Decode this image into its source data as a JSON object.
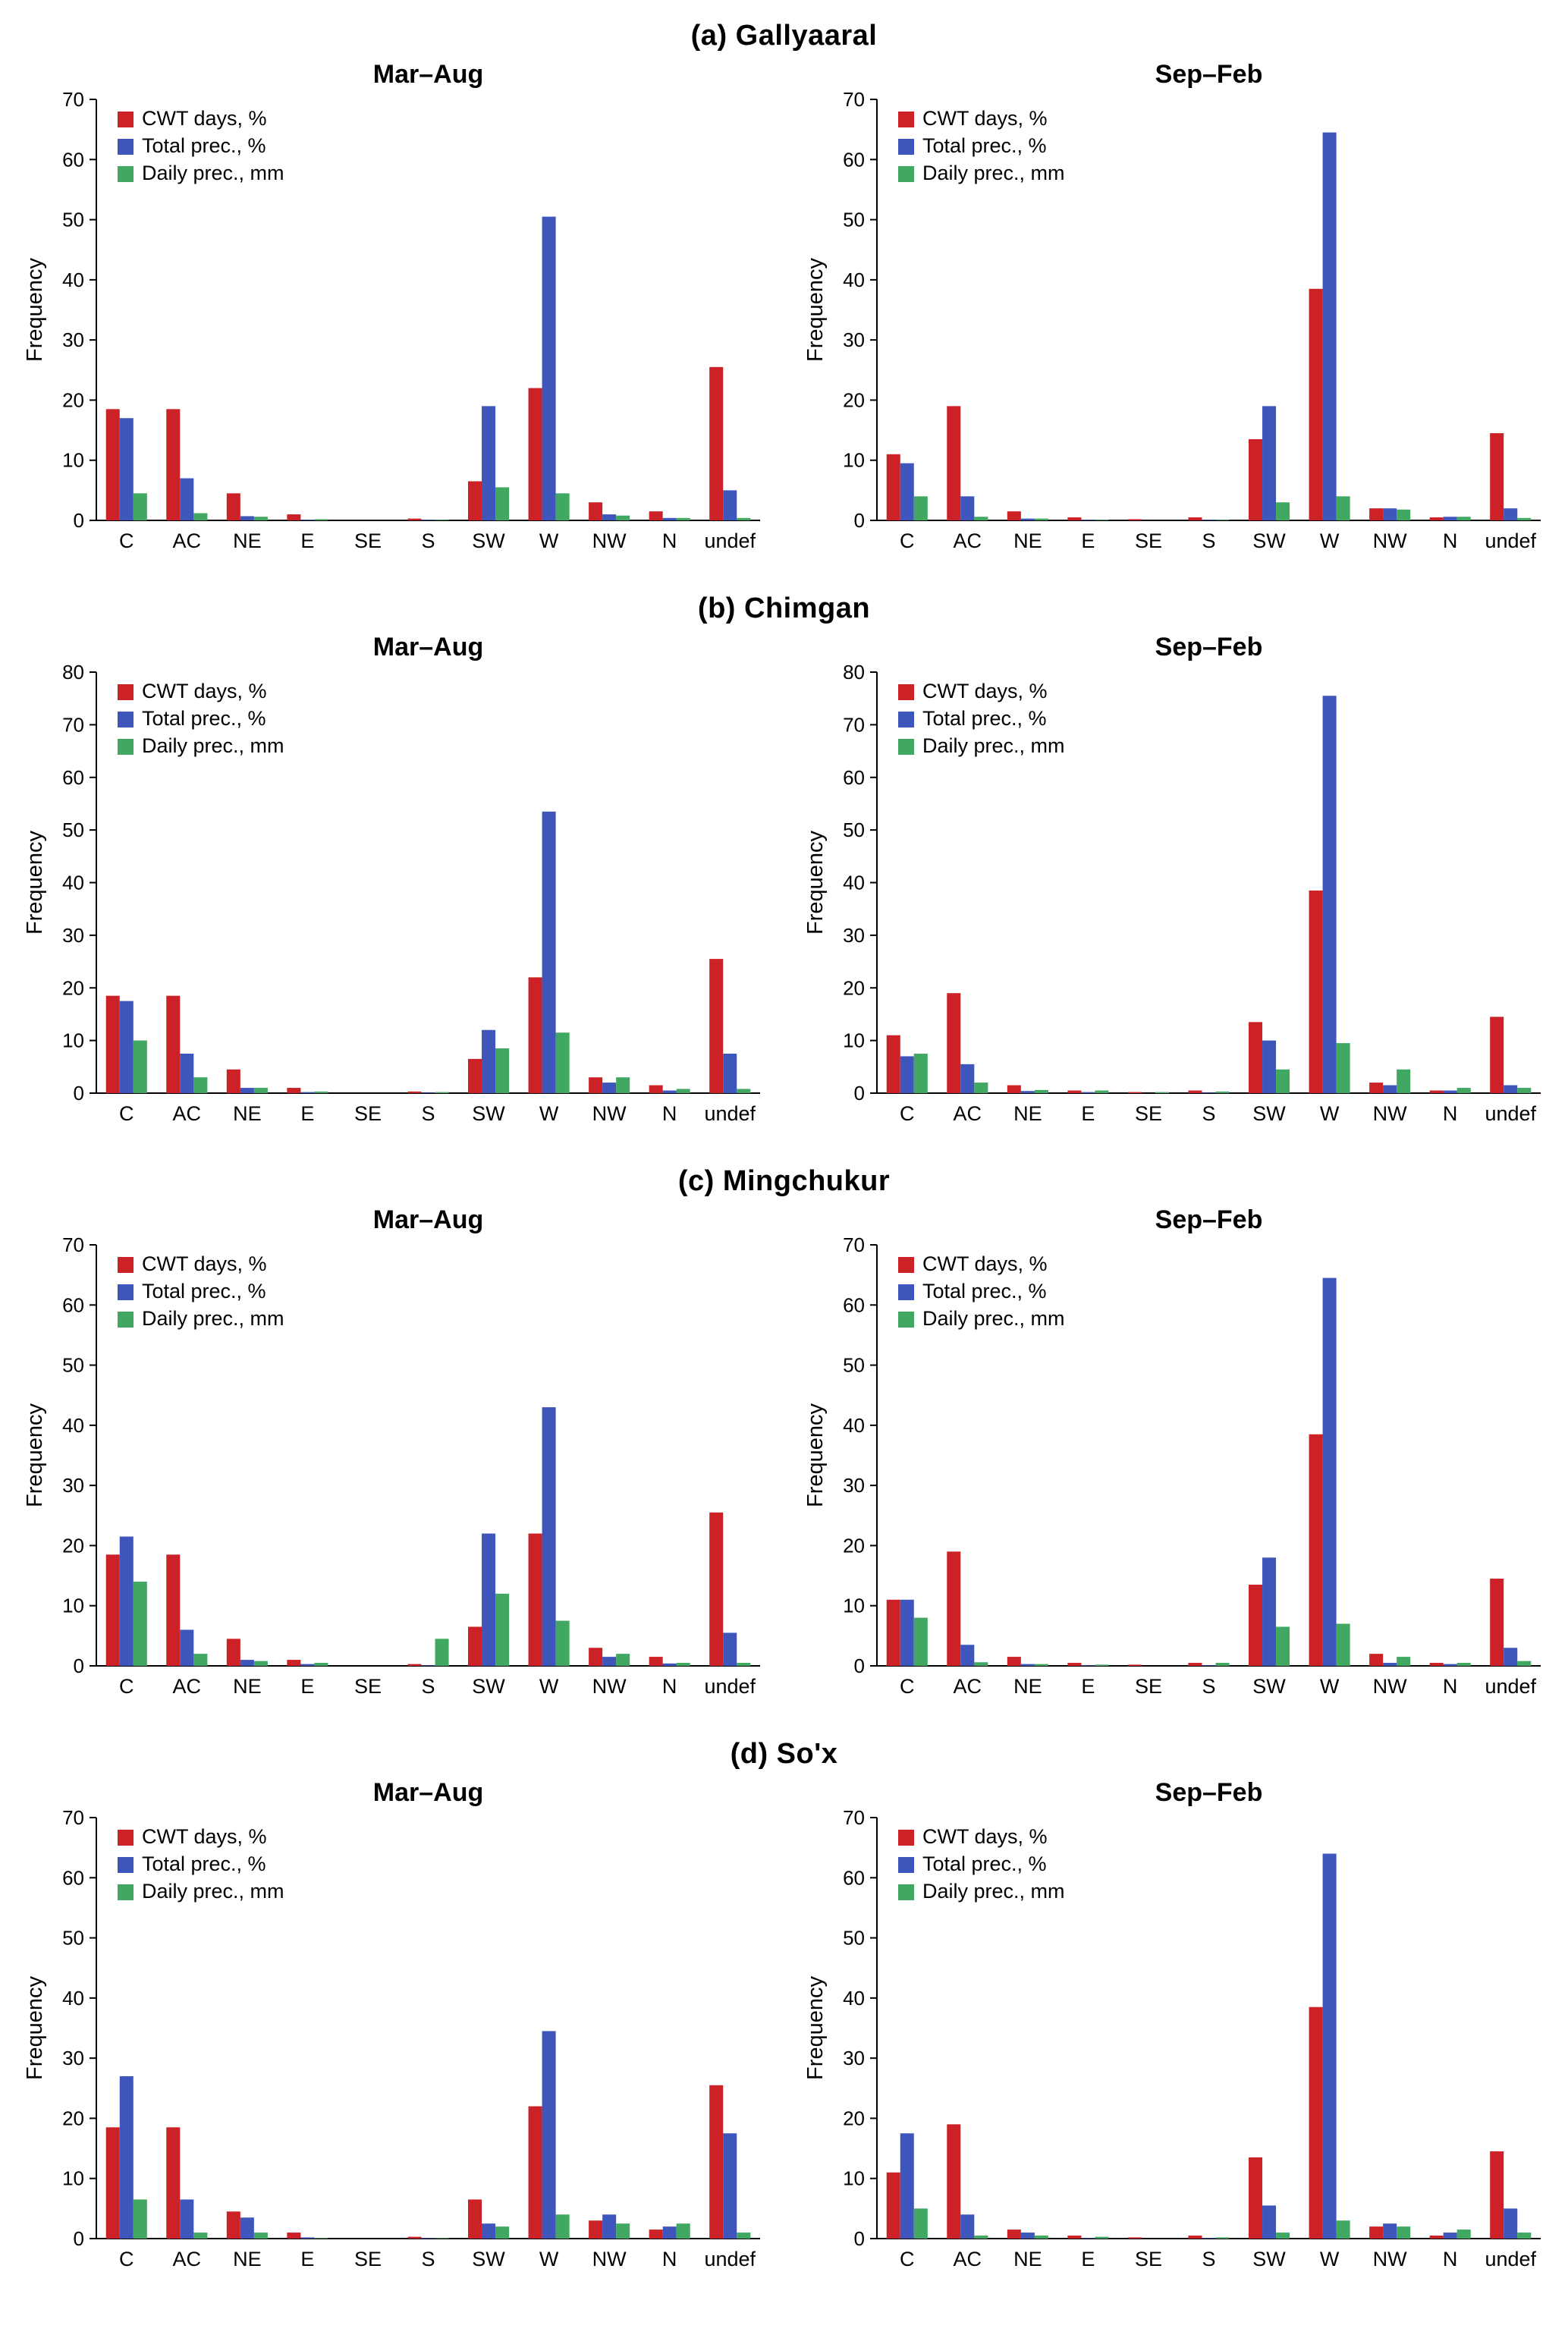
{
  "page": {
    "sections": [
      {
        "heading": "(a)  Gallyaaral"
      },
      {
        "heading": "(b)  Chimgan"
      },
      {
        "heading": "(c)  Mingchukur"
      },
      {
        "heading": "(d)  So'x"
      }
    ]
  },
  "legend": [
    "CWT days, %",
    "Total prec., %",
    "Daily prec., mm"
  ],
  "colors": {
    "cwt_days": "#cc2126",
    "total_prec": "#3e56bb",
    "daily_prec": "#40a860"
  },
  "chart_data": [
    {
      "id": "a-mar-aug",
      "section": "(a)  Gallyaaral",
      "title": "Mar–Aug",
      "type": "bar",
      "categories": [
        "C",
        "AC",
        "NE",
        "E",
        "SE",
        "S",
        "SW",
        "W",
        "NW",
        "N",
        "undef"
      ],
      "ylabel": "Frequency",
      "ylim": [
        0,
        70
      ],
      "ytick": 10,
      "legend_position": "top-left",
      "series": [
        {
          "name": "CWT days, %",
          "color": "#cc2126",
          "values": [
            18.5,
            18.5,
            4.5,
            1.0,
            0,
            0.3,
            6.5,
            22.0,
            3.0,
            1.5,
            25.5
          ]
        },
        {
          "name": "Total prec., %",
          "color": "#3e56bb",
          "values": [
            17.0,
            7.0,
            0.7,
            0.1,
            0,
            0.1,
            19.0,
            50.5,
            1.0,
            0.4,
            5.0
          ]
        },
        {
          "name": "Daily prec., mm",
          "color": "#40a860",
          "values": [
            4.5,
            1.2,
            0.6,
            0.2,
            0,
            0.1,
            5.5,
            4.5,
            0.8,
            0.4,
            0.4
          ]
        }
      ]
    },
    {
      "id": "a-sep-feb",
      "section": "(a)  Gallyaaral",
      "title": "Sep–Feb",
      "type": "bar",
      "categories": [
        "C",
        "AC",
        "NE",
        "E",
        "SE",
        "S",
        "SW",
        "W",
        "NW",
        "N",
        "undef"
      ],
      "ylabel": "Frequency",
      "ylim": [
        0,
        70
      ],
      "ytick": 10,
      "legend_position": "top-left",
      "series": [
        {
          "name": "CWT days, %",
          "color": "#cc2126",
          "values": [
            11.0,
            19.0,
            1.5,
            0.5,
            0.2,
            0.5,
            13.5,
            38.5,
            2.0,
            0.5,
            14.5
          ]
        },
        {
          "name": "Total prec., %",
          "color": "#3e56bb",
          "values": [
            9.5,
            4.0,
            0.3,
            0.1,
            0,
            0.1,
            19.0,
            64.5,
            2.0,
            0.6,
            2.0
          ]
        },
        {
          "name": "Daily prec., mm",
          "color": "#40a860",
          "values": [
            4.0,
            0.6,
            0.3,
            0.1,
            0,
            0.1,
            3.0,
            4.0,
            1.8,
            0.6,
            0.4
          ]
        }
      ]
    },
    {
      "id": "b-mar-aug",
      "section": "(b)  Chimgan",
      "title": "Mar–Aug",
      "type": "bar",
      "categories": [
        "C",
        "AC",
        "NE",
        "E",
        "SE",
        "S",
        "SW",
        "W",
        "NW",
        "N",
        "undef"
      ],
      "ylabel": "Frequency",
      "ylim": [
        0,
        80
      ],
      "ytick": 10,
      "legend_position": "top-left",
      "series": [
        {
          "name": "CWT days, %",
          "color": "#cc2126",
          "values": [
            18.5,
            18.5,
            4.5,
            1.0,
            0,
            0.3,
            6.5,
            22.0,
            3.0,
            1.5,
            25.5
          ]
        },
        {
          "name": "Total prec., %",
          "color": "#3e56bb",
          "values": [
            17.5,
            7.5,
            1.0,
            0.2,
            0,
            0.1,
            12.0,
            53.5,
            2.0,
            0.5,
            7.5
          ]
        },
        {
          "name": "Daily prec., mm",
          "color": "#40a860",
          "values": [
            10.0,
            3.0,
            1.0,
            0.3,
            0,
            0.2,
            8.5,
            11.5,
            3.0,
            0.8,
            0.8
          ]
        }
      ]
    },
    {
      "id": "b-sep-feb",
      "section": "(b)  Chimgan",
      "title": "Sep–Feb",
      "type": "bar",
      "categories": [
        "C",
        "AC",
        "NE",
        "E",
        "SE",
        "S",
        "SW",
        "W",
        "NW",
        "N",
        "undef"
      ],
      "ylabel": "Frequency",
      "ylim": [
        0,
        80
      ],
      "ytick": 10,
      "legend_position": "top-left",
      "series": [
        {
          "name": "CWT days, %",
          "color": "#cc2126",
          "values": [
            11.0,
            19.0,
            1.5,
            0.5,
            0.2,
            0.5,
            13.5,
            38.5,
            2.0,
            0.5,
            14.5
          ]
        },
        {
          "name": "Total prec., %",
          "color": "#3e56bb",
          "values": [
            7.0,
            5.5,
            0.4,
            0.2,
            0,
            0.1,
            10.0,
            75.5,
            1.5,
            0.5,
            1.5
          ]
        },
        {
          "name": "Daily prec., mm",
          "color": "#40a860",
          "values": [
            7.5,
            2.0,
            0.6,
            0.5,
            0.2,
            0.3,
            4.5,
            9.5,
            4.5,
            1.0,
            1.0
          ]
        }
      ]
    },
    {
      "id": "c-mar-aug",
      "section": "(c)  Mingchukur",
      "title": "Mar–Aug",
      "type": "bar",
      "categories": [
        "C",
        "AC",
        "NE",
        "E",
        "SE",
        "S",
        "SW",
        "W",
        "NW",
        "N",
        "undef"
      ],
      "ylabel": "Frequency",
      "ylim": [
        0,
        70
      ],
      "ytick": 10,
      "legend_position": "top-left",
      "series": [
        {
          "name": "CWT days, %",
          "color": "#cc2126",
          "values": [
            18.5,
            18.5,
            4.5,
            1.0,
            0,
            0.3,
            6.5,
            22.0,
            3.0,
            1.5,
            25.5
          ]
        },
        {
          "name": "Total prec., %",
          "color": "#3e56bb",
          "values": [
            21.5,
            6.0,
            1.0,
            0.3,
            0,
            0.1,
            22.0,
            43.0,
            1.5,
            0.4,
            5.5
          ]
        },
        {
          "name": "Daily prec., mm",
          "color": "#40a860",
          "values": [
            14.0,
            2.0,
            0.8,
            0.5,
            0,
            4.5,
            12.0,
            7.5,
            2.0,
            0.5,
            0.5
          ]
        }
      ]
    },
    {
      "id": "c-sep-feb",
      "section": "(c)  Mingchukur",
      "title": "Sep–Feb",
      "type": "bar",
      "categories": [
        "C",
        "AC",
        "NE",
        "E",
        "SE",
        "S",
        "SW",
        "W",
        "NW",
        "N",
        "undef"
      ],
      "ylabel": "Frequency",
      "ylim": [
        0,
        70
      ],
      "ytick": 10,
      "legend_position": "top-left",
      "series": [
        {
          "name": "CWT days, %",
          "color": "#cc2126",
          "values": [
            11.0,
            19.0,
            1.5,
            0.5,
            0.2,
            0.5,
            13.5,
            38.5,
            2.0,
            0.5,
            14.5
          ]
        },
        {
          "name": "Total prec., %",
          "color": "#3e56bb",
          "values": [
            11.0,
            3.5,
            0.3,
            0.1,
            0,
            0.1,
            18.0,
            64.5,
            0.5,
            0.3,
            3.0
          ]
        },
        {
          "name": "Daily prec., mm",
          "color": "#40a860",
          "values": [
            8.0,
            0.6,
            0.3,
            0.2,
            0,
            0.5,
            6.5,
            7.0,
            1.5,
            0.5,
            0.8
          ]
        }
      ]
    },
    {
      "id": "d-mar-aug",
      "section": "(d)  So'x",
      "title": "Mar–Aug",
      "type": "bar",
      "categories": [
        "C",
        "AC",
        "NE",
        "E",
        "SE",
        "S",
        "SW",
        "W",
        "NW",
        "N",
        "undef"
      ],
      "ylabel": "Frequency",
      "ylim": [
        0,
        70
      ],
      "ytick": 10,
      "legend_position": "top-left",
      "series": [
        {
          "name": "CWT days, %",
          "color": "#cc2126",
          "values": [
            18.5,
            18.5,
            4.5,
            1.0,
            0,
            0.3,
            6.5,
            22.0,
            3.0,
            1.5,
            25.5
          ]
        },
        {
          "name": "Total prec., %",
          "color": "#3e56bb",
          "values": [
            27.0,
            6.5,
            3.5,
            0.2,
            0,
            0.1,
            2.5,
            34.5,
            4.0,
            2.0,
            17.5
          ]
        },
        {
          "name": "Daily prec., mm",
          "color": "#40a860",
          "values": [
            6.5,
            1.0,
            1.0,
            0.1,
            0,
            0.1,
            2.0,
            4.0,
            2.5,
            2.5,
            1.0
          ]
        }
      ]
    },
    {
      "id": "d-sep-feb",
      "section": "(d)  So'x",
      "title": "Sep–Feb",
      "type": "bar",
      "categories": [
        "C",
        "AC",
        "NE",
        "E",
        "SE",
        "S",
        "SW",
        "W",
        "NW",
        "N",
        "undef"
      ],
      "ylabel": "Frequency",
      "ylim": [
        0,
        70
      ],
      "ytick": 10,
      "legend_position": "top-left",
      "series": [
        {
          "name": "CWT days, %",
          "color": "#cc2126",
          "values": [
            11.0,
            19.0,
            1.5,
            0.5,
            0.2,
            0.5,
            13.5,
            38.5,
            2.0,
            0.5,
            14.5
          ]
        },
        {
          "name": "Total prec., %",
          "color": "#3e56bb",
          "values": [
            17.5,
            4.0,
            1.0,
            0.1,
            0,
            0.1,
            5.5,
            64.0,
            2.5,
            1.0,
            5.0
          ]
        },
        {
          "name": "Daily prec., mm",
          "color": "#40a860",
          "values": [
            5.0,
            0.5,
            0.5,
            0.3,
            0,
            0.2,
            1.0,
            3.0,
            2.0,
            1.5,
            1.0
          ]
        }
      ]
    }
  ]
}
